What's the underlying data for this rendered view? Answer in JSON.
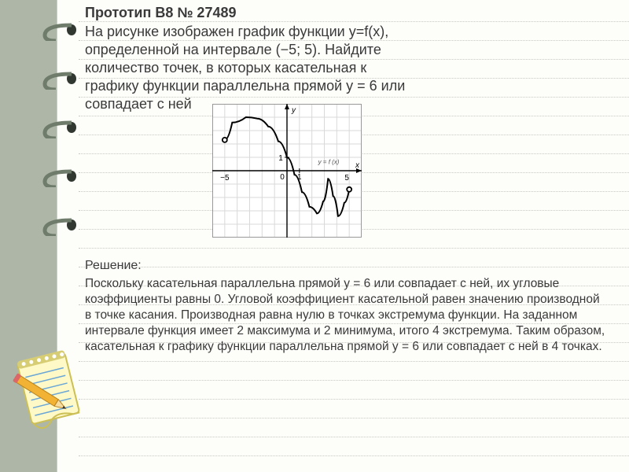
{
  "header": {
    "label": "Прототип B8 № 27489"
  },
  "problem": {
    "line1": "На рисунке изображен график функции y=f(x),",
    "line2": "определенной на интервале (−5; 5). Найдите",
    "line3": "количество точек, в которых касательная к",
    "line4": "графику функции параллельна прямой y = 6 или",
    "line5": "совпадает с ней"
  },
  "solution": {
    "title": "Решение:",
    "body": "Поскольку касательная параллельна прямой y = 6 или совпадает с ней, их угловые коэффициенты равны 0. Угловой коэффициент касательной равен значению производной в точке касания. Производная равна нулю в точках экстремума функции. На заданном интервале функция имеет 2 максимума и 2 минимума, итого 4 экстремума. Таким образом, касательная к графику функции параллельна прямой y = 6 или совпадает с ней в 4 точках."
  },
  "graph": {
    "background": "#ffffff",
    "grid_color": "#d9d9d9",
    "axis_color": "#000000",
    "curve_color": "#000000",
    "xlim": [
      -6,
      6
    ],
    "ylim": [
      -5,
      5
    ],
    "xticks": [
      -5,
      0,
      1,
      5
    ],
    "yticks": [
      0,
      1
    ],
    "label_x_neg5": "−5",
    "label_x_5": "5",
    "label_1": "1",
    "label_0": "0",
    "axis_label_x": "x",
    "axis_label_y": "y",
    "func_label": "y = f (x)",
    "curve_points": [
      [
        -5,
        2.3
      ],
      [
        -4.4,
        3.6
      ],
      [
        -3.3,
        4.0
      ],
      [
        -2.4,
        3.9
      ],
      [
        -1.5,
        3.3
      ],
      [
        -0.7,
        2.2
      ],
      [
        0.0,
        1.0
      ],
      [
        0.6,
        -0.3
      ],
      [
        1.2,
        -1.6
      ],
      [
        1.8,
        -2.7
      ],
      [
        2.4,
        -3.2
      ],
      [
        2.9,
        -2.3
      ],
      [
        3.3,
        -0.6
      ],
      [
        3.7,
        -1.9
      ],
      [
        4.1,
        -3.4
      ],
      [
        4.6,
        -2.4
      ],
      [
        5.0,
        -1.4
      ]
    ],
    "open_endpoints": [
      [
        -5,
        2.3
      ],
      [
        5,
        -1.4
      ]
    ]
  },
  "styling": {
    "page_bg": "#fdfdfa",
    "outer_bg": "#aeb6a7",
    "dot_color": "#c6cac1",
    "text_color": "#3a3a3a",
    "spiral_color": "#6f7b6b",
    "spiral_hole": "#313831"
  },
  "clipart": {
    "pad_color": "#fff9c8",
    "pad_border": "#cbbf55",
    "pencil_body": "#f2b233",
    "pencil_tip": "#f7dca0",
    "pencil_lead": "#333333"
  }
}
